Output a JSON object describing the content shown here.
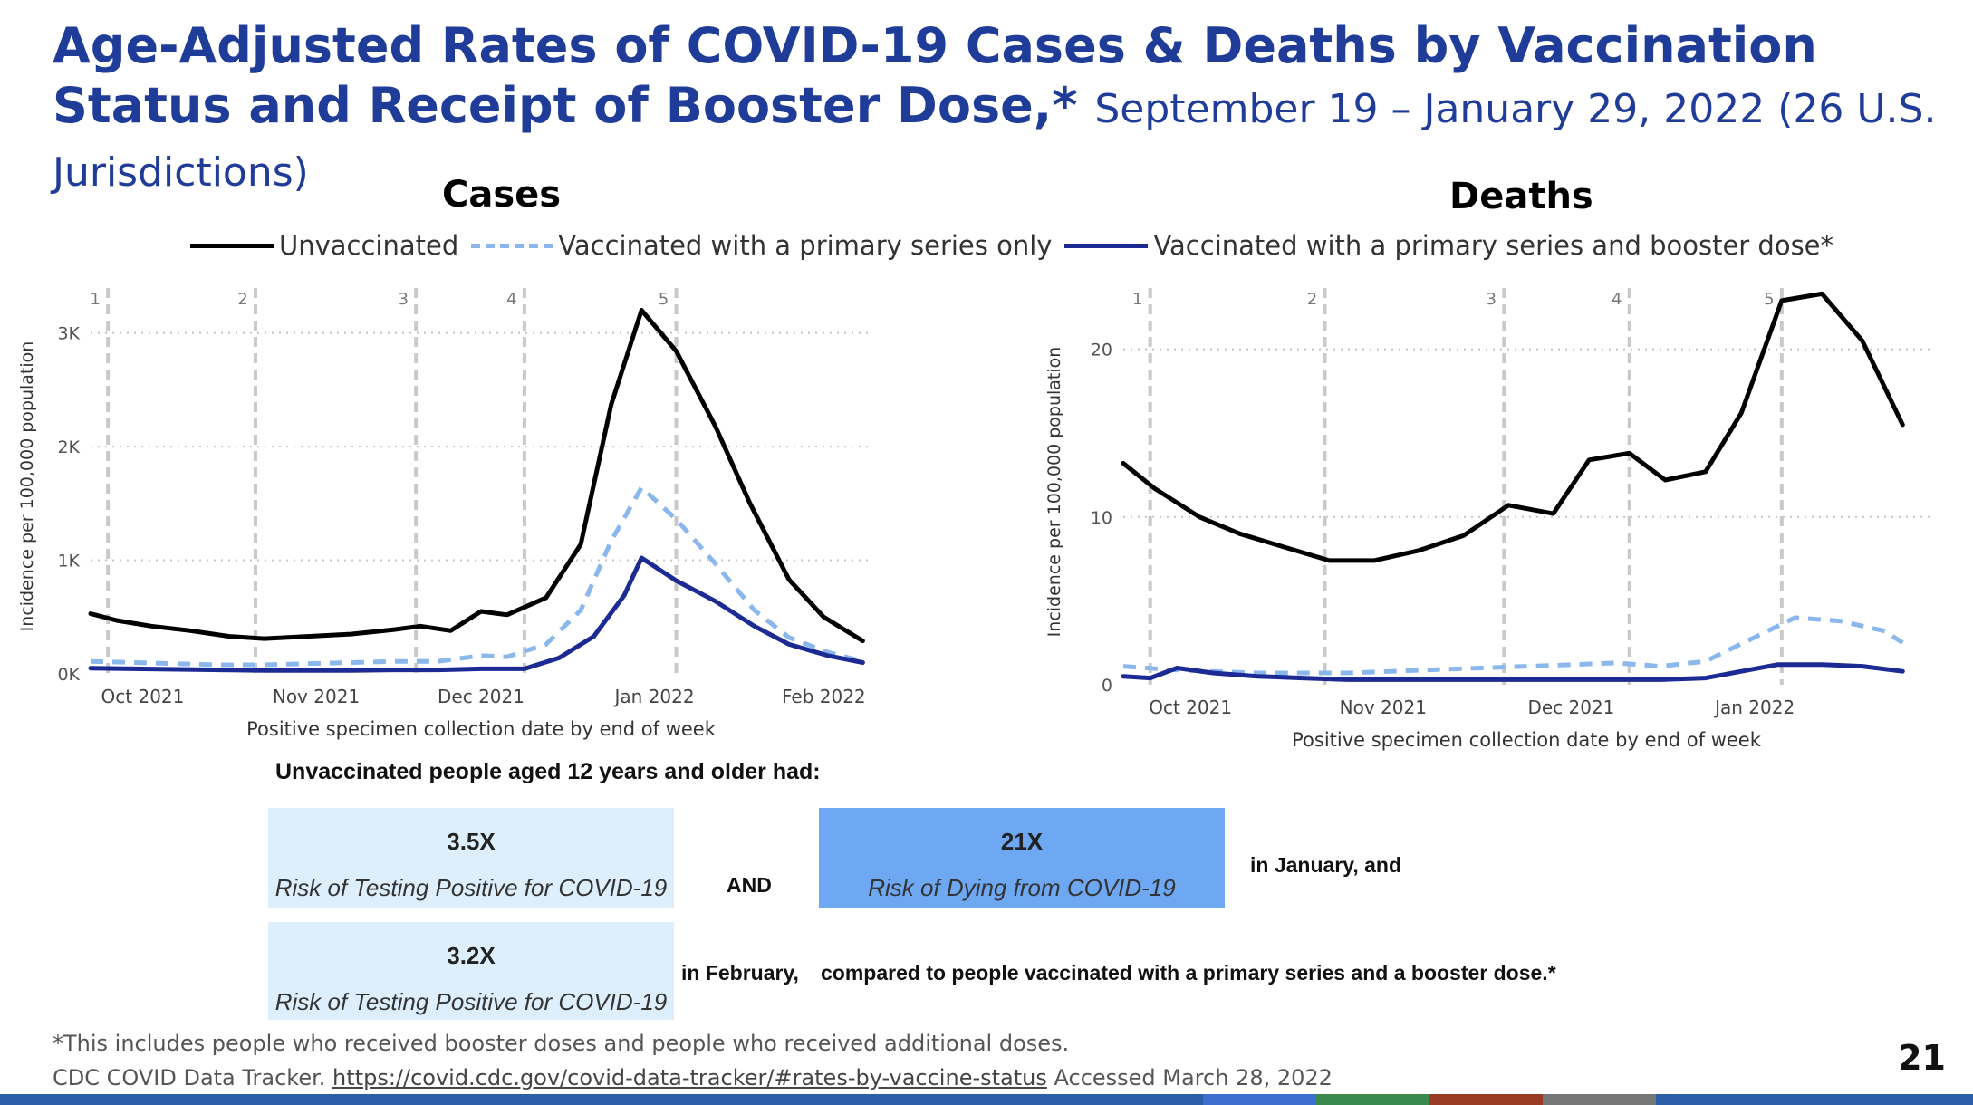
{
  "title": {
    "main": "Age-Adjusted Rates of COVID-19 Cases & Deaths by Vaccination Status and Receipt of Booster Dose",
    "asterisk": ",*",
    "subtitle": "September 19 – January 29, 2022 (26 U.S. Jurisdictions)"
  },
  "legend": [
    {
      "label": "Unvaccinated",
      "color": "#000000",
      "dash": false
    },
    {
      "label": "Vaccinated with a primary series only",
      "color": "#8ab8ec",
      "dash": true
    },
    {
      "label": "Vaccinated with a primary series and booster dose*",
      "color": "#1c2a93",
      "dash": false
    }
  ],
  "chart_data": [
    {
      "type": "line",
      "title": "Cases",
      "ylabel": "Incidence per 100,000 population",
      "xlabel": "Positive specimen collection date by end of week",
      "ylim": [
        0,
        3300
      ],
      "yticks": [
        {
          "v": 0,
          "label": "0K"
        },
        {
          "v": 1000,
          "label": "1K"
        },
        {
          "v": 2000,
          "label": "2K"
        },
        {
          "v": 3000,
          "label": "3K"
        }
      ],
      "x_week_range": [
        0,
        18
      ],
      "x_ticks": [
        {
          "w": 1.2,
          "label": "Oct 2021"
        },
        {
          "w": 5.2,
          "label": "Nov 2021"
        },
        {
          "w": 9,
          "label": "Dec 2021"
        },
        {
          "w": 13,
          "label": "Jan 2022"
        },
        {
          "w": 16.9,
          "label": "Feb 2022"
        }
      ],
      "markers": [
        {
          "w": 0.4,
          "label": "1"
        },
        {
          "w": 3.8,
          "label": "2"
        },
        {
          "w": 7.5,
          "label": "3"
        },
        {
          "w": 10,
          "label": "4"
        },
        {
          "w": 13.5,
          "label": "5"
        }
      ],
      "grid": true,
      "series": [
        {
          "name": "Unvaccinated",
          "color": "#000000",
          "dash": false,
          "points": [
            [
              0,
              530
            ],
            [
              0.6,
              470
            ],
            [
              1.4,
              420
            ],
            [
              2.3,
              380
            ],
            [
              3.2,
              330
            ],
            [
              4,
              310
            ],
            [
              5,
              330
            ],
            [
              6,
              350
            ],
            [
              7,
              390
            ],
            [
              7.6,
              420
            ],
            [
              8.3,
              380
            ],
            [
              9,
              550
            ],
            [
              9.6,
              520
            ],
            [
              10.5,
              670
            ],
            [
              11.3,
              1140
            ],
            [
              12,
              2370
            ],
            [
              12.7,
              3200
            ],
            [
              13.5,
              2840
            ],
            [
              14.4,
              2180
            ],
            [
              15.2,
              1500
            ],
            [
              16.1,
              830
            ],
            [
              16.9,
              500
            ],
            [
              17.8,
              290
            ]
          ]
        },
        {
          "name": "Vaccinated with a primary series only",
          "color": "#8ab8ec",
          "dash": true,
          "points": [
            [
              0,
              110
            ],
            [
              1,
              100
            ],
            [
              2,
              90
            ],
            [
              3,
              80
            ],
            [
              4,
              80
            ],
            [
              5,
              90
            ],
            [
              6,
              100
            ],
            [
              7,
              110
            ],
            [
              8,
              110
            ],
            [
              9,
              160
            ],
            [
              9.6,
              150
            ],
            [
              10.5,
              260
            ],
            [
              11.3,
              560
            ],
            [
              12,
              1170
            ],
            [
              12.7,
              1640
            ],
            [
              13.5,
              1360
            ],
            [
              14.4,
              970
            ],
            [
              15.3,
              560
            ],
            [
              16.1,
              320
            ],
            [
              17,
              190
            ],
            [
              17.8,
              110
            ]
          ]
        },
        {
          "name": "Vaccinated with a primary series and booster dose*",
          "color": "#1c2a93",
          "dash": false,
          "points": [
            [
              0,
              50
            ],
            [
              1,
              45
            ],
            [
              2,
              40
            ],
            [
              3,
              35
            ],
            [
              4,
              30
            ],
            [
              5,
              30
            ],
            [
              6,
              30
            ],
            [
              7,
              35
            ],
            [
              8,
              35
            ],
            [
              9,
              45
            ],
            [
              10,
              45
            ],
            [
              10.8,
              140
            ],
            [
              11.6,
              330
            ],
            [
              12.3,
              690
            ],
            [
              12.7,
              1020
            ],
            [
              13.5,
              820
            ],
            [
              14.4,
              640
            ],
            [
              15.3,
              420
            ],
            [
              16.1,
              260
            ],
            [
              17,
              160
            ],
            [
              17.8,
              100
            ]
          ]
        }
      ]
    },
    {
      "type": "line",
      "title": "Deaths",
      "ylabel": "Incidence per 100,000 population",
      "xlabel": "Positive specimen collection date by end of week",
      "ylim": [
        0,
        23
      ],
      "yticks": [
        {
          "v": 0,
          "label": "0"
        },
        {
          "v": 10,
          "label": "10"
        },
        {
          "v": 20,
          "label": "20"
        }
      ],
      "x_week_range": [
        0,
        18
      ],
      "x_ticks": [
        {
          "w": 1.5,
          "label": "Oct 2021"
        },
        {
          "w": 5.8,
          "label": "Nov 2021"
        },
        {
          "w": 10,
          "label": "Dec 2021"
        },
        {
          "w": 14.1,
          "label": "Jan 2022"
        }
      ],
      "markers": [
        {
          "w": 0.6,
          "label": "1"
        },
        {
          "w": 4.5,
          "label": "2"
        },
        {
          "w": 8.5,
          "label": "3"
        },
        {
          "w": 11.3,
          "label": "4"
        },
        {
          "w": 14.7,
          "label": "5"
        }
      ],
      "grid": true,
      "series": [
        {
          "name": "Unvaccinated",
          "color": "#000000",
          "dash": false,
          "points": [
            [
              0,
              13.2
            ],
            [
              0.7,
              11.7
            ],
            [
              1.7,
              10
            ],
            [
              2.6,
              9
            ],
            [
              3.6,
              8.2
            ],
            [
              4.6,
              7.4
            ],
            [
              5.6,
              7.4
            ],
            [
              6.6,
              8
            ],
            [
              7.6,
              8.9
            ],
            [
              8.6,
              10.7
            ],
            [
              9.6,
              10.2
            ],
            [
              10.4,
              13.4
            ],
            [
              11.3,
              13.8
            ],
            [
              12.1,
              12.2
            ],
            [
              13,
              12.7
            ],
            [
              13.8,
              16.2
            ],
            [
              14.7,
              22.9
            ],
            [
              15.6,
              23.3
            ],
            [
              16.5,
              20.5
            ],
            [
              17.4,
              15.5
            ]
          ]
        },
        {
          "name": "Vaccinated with a primary series only",
          "color": "#8ab8ec",
          "dash": true,
          "points": [
            [
              0,
              1.1
            ],
            [
              1,
              0.9
            ],
            [
              2,
              0.8
            ],
            [
              3,
              0.7
            ],
            [
              4,
              0.7
            ],
            [
              5,
              0.7
            ],
            [
              6,
              0.8
            ],
            [
              7,
              0.9
            ],
            [
              8,
              1
            ],
            [
              9,
              1.1
            ],
            [
              10,
              1.2
            ],
            [
              11,
              1.3
            ],
            [
              12,
              1.1
            ],
            [
              13,
              1.4
            ],
            [
              14,
              2.7
            ],
            [
              15,
              4
            ],
            [
              16,
              3.8
            ],
            [
              17,
              3.2
            ],
            [
              17.4,
              2.5
            ]
          ]
        },
        {
          "name": "Vaccinated with a primary series and booster dose*",
          "color": "#1c2a93",
          "dash": false,
          "points": [
            [
              0,
              0.5
            ],
            [
              0.6,
              0.4
            ],
            [
              1.2,
              1
            ],
            [
              2,
              0.7
            ],
            [
              3,
              0.5
            ],
            [
              4,
              0.4
            ],
            [
              5,
              0.3
            ],
            [
              6,
              0.3
            ],
            [
              7,
              0.3
            ],
            [
              8,
              0.3
            ],
            [
              9,
              0.3
            ],
            [
              10,
              0.3
            ],
            [
              11,
              0.3
            ],
            [
              12,
              0.3
            ],
            [
              13,
              0.4
            ],
            [
              13.8,
              0.8
            ],
            [
              14.6,
              1.2
            ],
            [
              15.6,
              1.2
            ],
            [
              16.5,
              1.1
            ],
            [
              17.4,
              0.8
            ]
          ]
        }
      ]
    }
  ],
  "summary": {
    "intro": "Unvaccinated people aged 12 years and older had:",
    "box1_big": "3.5X",
    "box1_small": "Risk of Testing Positive for COVID-19",
    "and": "AND",
    "box2_big": "21X",
    "box2_small": "Risk of Dying from COVID-19",
    "january": "in January, and",
    "box3_big": "3.2X",
    "box3_small": "Risk of Testing Positive for COVID-19",
    "february": "in February,",
    "compared": "compared to people vaccinated with a primary series and a booster dose.*",
    "box_light": "#ddeefd",
    "box_dark": "#6ea8f3"
  },
  "footnote": {
    "line1": "*This includes  people who received booster doses and people  who received additional  doses.",
    "source_prefix": "CDC COVID Data Tracker.",
    "source_url": "https://covid.cdc.gov/covid-data-tracker/#rates-by-vaccine-status",
    "source_suffix": "Accessed March 28, 2022"
  },
  "page_number": "21",
  "bottom_bar_colors": [
    "#2d5fa9",
    "#2d5fa9",
    "#2d5fa9",
    "#2d5fa9",
    "#2d5fa9",
    "#2d5fa9",
    "#2d5fa9",
    "#2d5fa9",
    "#3d6fd0",
    "#3a8a4d",
    "#9a3b25",
    "#777777",
    "#2d5fa9"
  ]
}
